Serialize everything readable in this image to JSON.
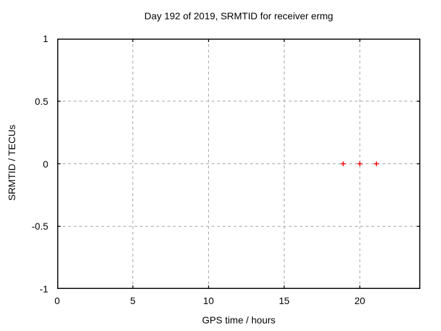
{
  "chart_data": {
    "type": "scatter",
    "title": "Day 192 of 2019, SRMTID for receiver ermg",
    "xlabel": "GPS time / hours",
    "ylabel": "SRMTID / TECUs",
    "xlim": [
      0,
      24
    ],
    "ylim": [
      -1,
      1
    ],
    "xticks": [
      0,
      5,
      10,
      15,
      20
    ],
    "yticks": [
      -1,
      -0.5,
      0,
      0.5,
      1
    ],
    "grid": true,
    "grid_style": "dashed",
    "ticks_mirrored": true,
    "legend": "none",
    "series": [
      {
        "name": "SRMTID",
        "marker": "plus",
        "color": "#ff0000",
        "points": [
          [
            18.9,
            0
          ],
          [
            20.0,
            0
          ],
          [
            21.1,
            0
          ]
        ]
      }
    ]
  },
  "style_colors": {
    "background": "#ffffff",
    "text": "#000000",
    "plot_border": "#000000",
    "grid": "#a0a0a0",
    "marker": "#ff0000"
  }
}
